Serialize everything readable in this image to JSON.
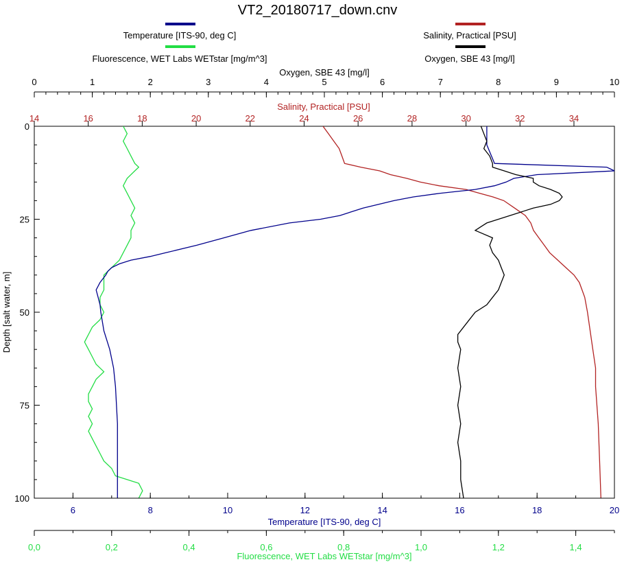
{
  "chart_data": {
    "type": "line",
    "title": "VT2_20180717_down.cnv",
    "legend_placement": "top",
    "grid": false,
    "depth_axis": {
      "label": "Depth [salt water, m]",
      "range": [
        0,
        100
      ],
      "ticks": [
        "0",
        "25",
        "50",
        "75",
        "100"
      ],
      "inverted": true
    },
    "axes": {
      "oxygen": {
        "label": "Oxygen, SBE 43 [mg/l]",
        "color": "#000000",
        "range": [
          0,
          10
        ],
        "ticks": [
          "0",
          "1",
          "2",
          "3",
          "4",
          "5",
          "6",
          "7",
          "8",
          "9",
          "10"
        ]
      },
      "salinity": {
        "label": "Salinity, Practical [PSU]",
        "color": "#b22222",
        "range": [
          14,
          35.5
        ],
        "ticks": [
          "14",
          "16",
          "18",
          "20",
          "22",
          "24",
          "26",
          "28",
          "30",
          "32",
          "34"
        ]
      },
      "temperature": {
        "label": "Temperature [ITS-90, deg C]",
        "color": "#00008b",
        "range": [
          5,
          20
        ],
        "ticks": [
          "6",
          "8",
          "10",
          "12",
          "14",
          "16",
          "18",
          "20"
        ]
      },
      "fluorescence": {
        "label": "Fluorescence, WET Labs WETstar [mg/m^3]",
        "color": "#22dd44",
        "range": [
          0,
          1.5
        ],
        "ticks": [
          "0,0",
          "0,2",
          "0,4",
          "0,6",
          "0,8",
          "1,0",
          "1,2",
          "1,4"
        ]
      }
    },
    "legend": [
      {
        "name": "Temperature [ITS-90, deg C]",
        "color": "#00008b"
      },
      {
        "name": "Salinity, Practical [PSU]",
        "color": "#b22222"
      },
      {
        "name": "Fluorescence, WET Labs WETstar [mg/m^3]",
        "color": "#22dd44"
      },
      {
        "name": "Oxygen, SBE 43 [mg/l]",
        "color": "#000000"
      }
    ],
    "series": [
      {
        "name": "Temperature [ITS-90, deg C]",
        "axis": "temperature",
        "color": "#00008b",
        "points": [
          [
            0,
            16.7
          ],
          [
            5,
            16.7
          ],
          [
            10,
            16.9
          ],
          [
            11,
            19.8
          ],
          [
            12,
            20.0
          ],
          [
            13,
            18.0
          ],
          [
            14,
            17.4
          ],
          [
            15,
            17.2
          ],
          [
            16,
            16.9
          ],
          [
            17,
            16.4
          ],
          [
            18,
            15.5
          ],
          [
            19,
            14.8
          ],
          [
            20,
            14.3
          ],
          [
            22,
            13.5
          ],
          [
            24,
            12.9
          ],
          [
            25,
            12.4
          ],
          [
            26,
            11.6
          ],
          [
            28,
            10.6
          ],
          [
            30,
            9.9
          ],
          [
            32,
            9.2
          ],
          [
            34,
            8.4
          ],
          [
            35,
            8.0
          ],
          [
            36,
            7.5
          ],
          [
            37,
            7.2
          ],
          [
            38,
            7.0
          ],
          [
            39,
            6.9
          ],
          [
            40,
            6.85
          ],
          [
            42,
            6.7
          ],
          [
            44,
            6.6
          ],
          [
            46,
            6.65
          ],
          [
            48,
            6.7
          ],
          [
            50,
            6.72
          ],
          [
            55,
            6.8
          ],
          [
            60,
            6.95
          ],
          [
            65,
            7.05
          ],
          [
            70,
            7.1
          ],
          [
            80,
            7.15
          ],
          [
            90,
            7.15
          ],
          [
            100,
            7.15
          ]
        ]
      },
      {
        "name": "Salinity, Practical [PSU]",
        "axis": "salinity",
        "color": "#b22222",
        "points": [
          [
            0,
            24.7
          ],
          [
            2,
            24.9
          ],
          [
            4,
            25.1
          ],
          [
            6,
            25.3
          ],
          [
            8,
            25.4
          ],
          [
            10,
            25.5
          ],
          [
            11,
            26.1
          ],
          [
            12,
            26.8
          ],
          [
            13,
            27.2
          ],
          [
            14,
            27.8
          ],
          [
            15,
            28.3
          ],
          [
            16,
            29.0
          ],
          [
            17,
            30.0
          ],
          [
            18,
            30.5
          ],
          [
            19,
            31.0
          ],
          [
            20,
            31.4
          ],
          [
            22,
            31.8
          ],
          [
            24,
            32.2
          ],
          [
            26,
            32.4
          ],
          [
            28,
            32.5
          ],
          [
            30,
            32.7
          ],
          [
            32,
            32.9
          ],
          [
            34,
            33.1
          ],
          [
            36,
            33.4
          ],
          [
            38,
            33.7
          ],
          [
            40,
            34.0
          ],
          [
            42,
            34.2
          ],
          [
            44,
            34.3
          ],
          [
            46,
            34.4
          ],
          [
            50,
            34.5
          ],
          [
            55,
            34.6
          ],
          [
            60,
            34.7
          ],
          [
            65,
            34.8
          ],
          [
            70,
            34.8
          ],
          [
            80,
            34.9
          ],
          [
            90,
            34.95
          ],
          [
            100,
            35.0
          ]
        ]
      },
      {
        "name": "Fluorescence, WET Labs WETstar [mg/m^3]",
        "axis": "fluorescence",
        "color": "#22dd44",
        "points": [
          [
            0,
            0.23
          ],
          [
            2,
            0.24
          ],
          [
            4,
            0.23
          ],
          [
            6,
            0.24
          ],
          [
            8,
            0.25
          ],
          [
            10,
            0.26
          ],
          [
            11,
            0.27
          ],
          [
            12,
            0.26
          ],
          [
            14,
            0.24
          ],
          [
            16,
            0.23
          ],
          [
            18,
            0.24
          ],
          [
            20,
            0.25
          ],
          [
            22,
            0.26
          ],
          [
            24,
            0.25
          ],
          [
            26,
            0.26
          ],
          [
            28,
            0.25
          ],
          [
            30,
            0.25
          ],
          [
            32,
            0.24
          ],
          [
            34,
            0.23
          ],
          [
            36,
            0.22
          ],
          [
            38,
            0.2
          ],
          [
            40,
            0.18
          ],
          [
            42,
            0.18
          ],
          [
            44,
            0.18
          ],
          [
            46,
            0.17
          ],
          [
            48,
            0.17
          ],
          [
            50,
            0.18
          ],
          [
            52,
            0.17
          ],
          [
            54,
            0.15
          ],
          [
            56,
            0.14
          ],
          [
            58,
            0.13
          ],
          [
            60,
            0.14
          ],
          [
            62,
            0.15
          ],
          [
            64,
            0.16
          ],
          [
            66,
            0.18
          ],
          [
            68,
            0.16
          ],
          [
            70,
            0.15
          ],
          [
            72,
            0.14
          ],
          [
            74,
            0.14
          ],
          [
            76,
            0.15
          ],
          [
            78,
            0.14
          ],
          [
            80,
            0.15
          ],
          [
            82,
            0.14
          ],
          [
            84,
            0.15
          ],
          [
            86,
            0.16
          ],
          [
            88,
            0.17
          ],
          [
            90,
            0.18
          ],
          [
            92,
            0.2
          ],
          [
            94,
            0.21
          ],
          [
            95,
            0.24
          ],
          [
            96,
            0.27
          ],
          [
            98,
            0.28
          ],
          [
            100,
            0.27
          ]
        ]
      },
      {
        "name": "Oxygen, SBE 43 [mg/l]",
        "axis": "oxygen",
        "color": "#000000",
        "points": [
          [
            0,
            7.7
          ],
          [
            2,
            7.75
          ],
          [
            4,
            7.8
          ],
          [
            6,
            7.75
          ],
          [
            8,
            7.85
          ],
          [
            10,
            7.9
          ],
          [
            11,
            7.9
          ],
          [
            12,
            8.1
          ],
          [
            13,
            8.3
          ],
          [
            14,
            8.6
          ],
          [
            15,
            8.6
          ],
          [
            16,
            8.7
          ],
          [
            17,
            8.9
          ],
          [
            18,
            9.05
          ],
          [
            19,
            9.1
          ],
          [
            20,
            9.05
          ],
          [
            21,
            8.9
          ],
          [
            22,
            8.6
          ],
          [
            23,
            8.4
          ],
          [
            24,
            8.2
          ],
          [
            25,
            8.0
          ],
          [
            26,
            7.8
          ],
          [
            27,
            7.7
          ],
          [
            28,
            7.6
          ],
          [
            30,
            7.9
          ],
          [
            32,
            7.85
          ],
          [
            34,
            7.9
          ],
          [
            36,
            8.0
          ],
          [
            38,
            8.05
          ],
          [
            40,
            8.1
          ],
          [
            42,
            8.05
          ],
          [
            44,
            8.0
          ],
          [
            46,
            7.9
          ],
          [
            48,
            7.8
          ],
          [
            50,
            7.6
          ],
          [
            52,
            7.5
          ],
          [
            54,
            7.4
          ],
          [
            56,
            7.3
          ],
          [
            58,
            7.3
          ],
          [
            60,
            7.35
          ],
          [
            65,
            7.3
          ],
          [
            70,
            7.35
          ],
          [
            75,
            7.3
          ],
          [
            80,
            7.35
          ],
          [
            85,
            7.3
          ],
          [
            90,
            7.35
          ],
          [
            95,
            7.35
          ],
          [
            100,
            7.4
          ]
        ]
      }
    ]
  }
}
